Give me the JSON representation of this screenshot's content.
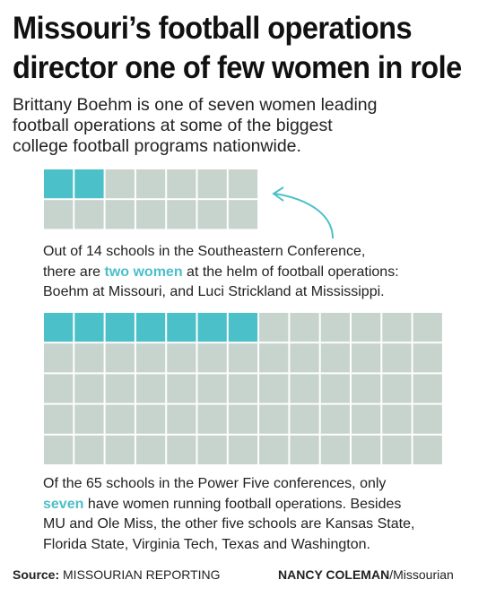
{
  "title": {
    "line1": "Missouri’s football operations",
    "line2": "director one of few women in role"
  },
  "subtitle": {
    "line1": "Brittany Boehm is one of seven women leading",
    "line2": "football operations at some of the biggest",
    "line3": "college football programs nationwide."
  },
  "chart_data": [
    {
      "type": "waffle",
      "total": 14,
      "highlighted": 2,
      "columns": 7,
      "rows": 2,
      "highlight_color": "#4cc0c8",
      "base_color": "#c7d3cd",
      "caption": {
        "line1": "Out of 14 schools in the Southeastern Conference,",
        "line2_pre": "there are ",
        "line2_hl": "two women",
        "line2_post": " at the helm of football operations:",
        "line3": "Boehm at Missouri, and Luci Strickland at Mississippi."
      }
    },
    {
      "type": "waffle",
      "total": 65,
      "highlighted": 7,
      "columns": 13,
      "rows": 5,
      "highlight_color": "#4cc0c8",
      "base_color": "#c7d3cd",
      "caption": {
        "line1": "Of the 65 schools in the Power Five conferences, only",
        "line2_hl": "seven",
        "line2_post": " have women running football operations. Besides",
        "line3": "MU and Ole Miss, the other five schools are Kansas State,",
        "line4": "Florida State, Virginia Tech, Texas and Washington."
      }
    }
  ],
  "arrow_color": "#4cc0c8",
  "footer": {
    "source_label": "Source:",
    "source_text": " MISSOURIAN REPORTING",
    "credit_name": "NANCY COLEMAN",
    "credit_org": "/Missourian"
  }
}
